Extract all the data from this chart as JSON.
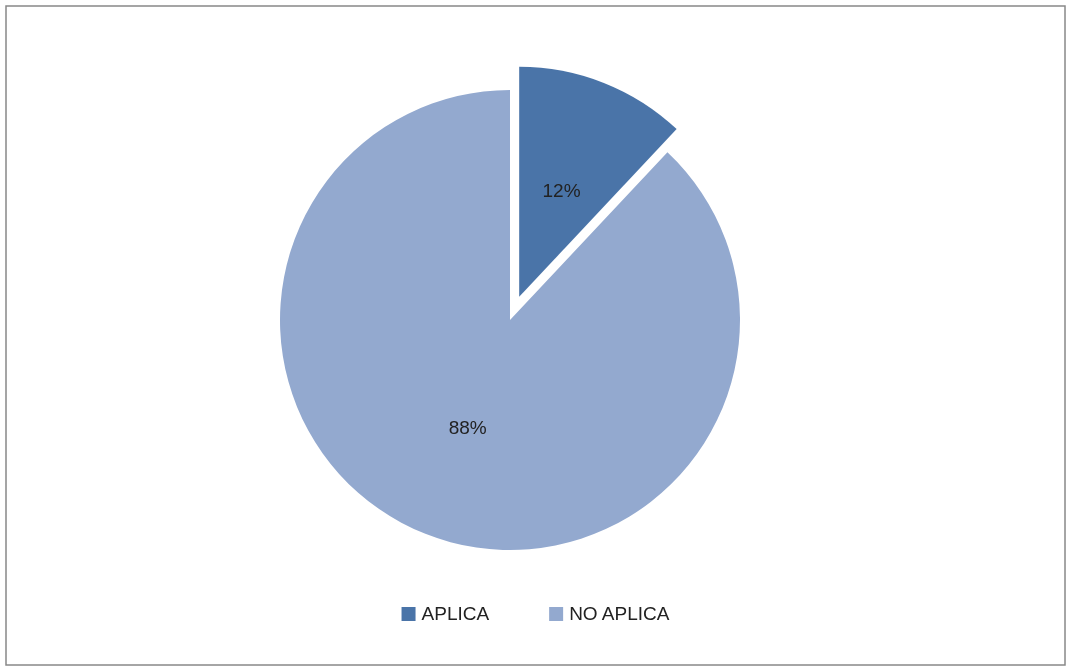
{
  "chart_data": {
    "type": "pie",
    "categories": [
      "APLICA",
      "NO APLICA"
    ],
    "values": [
      12,
      88
    ],
    "colors": [
      "#4a74a8",
      "#93a9cf"
    ],
    "value_labels": [
      "12%",
      "88%"
    ],
    "legend": "bottom"
  }
}
